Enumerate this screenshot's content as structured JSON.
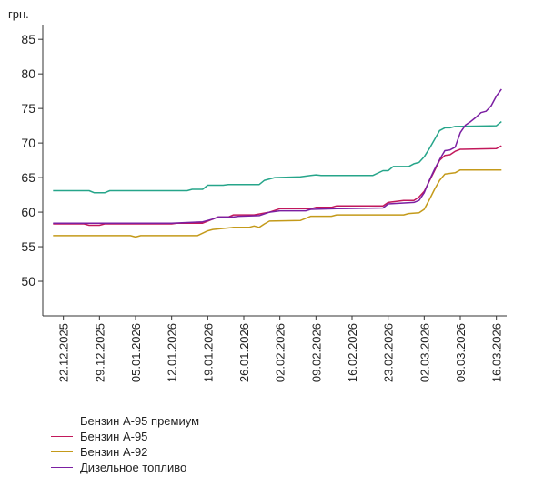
{
  "chart_data": {
    "type": "line",
    "ylabel": "грн.",
    "ylim": [
      45,
      87
    ],
    "yticks": [
      50,
      55,
      60,
      65,
      70,
      75,
      80,
      85
    ],
    "xlim": [
      "2025-12-18",
      "2026-03-18"
    ],
    "xticks": [
      {
        "date": "2025-12-22",
        "label": "22.12.2025"
      },
      {
        "date": "2025-12-29",
        "label": "29.12.2025"
      },
      {
        "date": "2026-01-05",
        "label": "05.01.2026"
      },
      {
        "date": "2026-01-12",
        "label": "12.01.2026"
      },
      {
        "date": "2026-01-19",
        "label": "19.01.2026"
      },
      {
        "date": "2026-01-26",
        "label": "26.01.2026"
      },
      {
        "date": "2026-02-02",
        "label": "02.02.2026"
      },
      {
        "date": "2026-02-09",
        "label": "09.02.2026"
      },
      {
        "date": "2026-02-16",
        "label": "16.02.2026"
      },
      {
        "date": "2026-02-23",
        "label": "23.02.2026"
      },
      {
        "date": "2026-03-02",
        "label": "02.03.2026"
      },
      {
        "date": "2026-03-09",
        "label": "09.03.2026"
      },
      {
        "date": "2026-03-16",
        "label": "16.03.2026"
      }
    ],
    "grid": false,
    "legend_position": "bottom-left",
    "series": [
      {
        "name": "Бензин А-95 премиум",
        "color": "#26a58a",
        "points": [
          [
            "2025-12-20",
            63.1
          ],
          [
            "2025-12-27",
            63.1
          ],
          [
            "2025-12-28",
            62.8
          ],
          [
            "2025-12-30",
            62.8
          ],
          [
            "2025-12-31",
            63.1
          ],
          [
            "2026-01-15",
            63.1
          ],
          [
            "2026-01-16",
            63.3
          ],
          [
            "2026-01-18",
            63.3
          ],
          [
            "2026-01-19",
            63.9
          ],
          [
            "2026-01-22",
            63.9
          ],
          [
            "2026-01-23",
            64.0
          ],
          [
            "2026-01-29",
            64.0
          ],
          [
            "2026-01-30",
            64.6
          ],
          [
            "2026-02-01",
            65.0
          ],
          [
            "2026-02-06",
            65.1
          ],
          [
            "2026-02-08",
            65.3
          ],
          [
            "2026-02-09",
            65.4
          ],
          [
            "2026-02-10",
            65.3
          ],
          [
            "2026-02-20",
            65.3
          ],
          [
            "2026-02-22",
            66.0
          ],
          [
            "2026-02-23",
            66.0
          ],
          [
            "2026-02-24",
            66.6
          ],
          [
            "2026-02-27",
            66.6
          ],
          [
            "2026-02-28",
            67.0
          ],
          [
            "2026-03-01",
            67.2
          ],
          [
            "2026-03-02",
            68.0
          ],
          [
            "2026-03-03",
            69.2
          ],
          [
            "2026-03-04",
            70.5
          ],
          [
            "2026-03-05",
            71.8
          ],
          [
            "2026-03-06",
            72.2
          ],
          [
            "2026-03-07",
            72.2
          ],
          [
            "2026-03-08",
            72.4
          ],
          [
            "2026-03-16",
            72.5
          ],
          [
            "2026-03-17",
            73.1
          ]
        ]
      },
      {
        "name": "Бензин А-95",
        "color": "#c2185b",
        "points": [
          [
            "2025-12-20",
            58.3
          ],
          [
            "2025-12-26",
            58.3
          ],
          [
            "2025-12-27",
            58.1
          ],
          [
            "2025-12-29",
            58.1
          ],
          [
            "2025-12-30",
            58.3
          ],
          [
            "2026-01-12",
            58.3
          ],
          [
            "2026-01-13",
            58.4
          ],
          [
            "2026-01-18",
            58.4
          ],
          [
            "2026-01-20",
            59.0
          ],
          [
            "2026-01-21",
            59.3
          ],
          [
            "2026-01-23",
            59.3
          ],
          [
            "2026-01-24",
            59.6
          ],
          [
            "2026-01-28",
            59.6
          ],
          [
            "2026-01-31",
            60.0
          ],
          [
            "2026-02-02",
            60.5
          ],
          [
            "2026-02-08",
            60.5
          ],
          [
            "2026-02-09",
            60.7
          ],
          [
            "2026-02-12",
            60.7
          ],
          [
            "2026-02-13",
            60.9
          ],
          [
            "2026-02-22",
            60.9
          ],
          [
            "2026-02-23",
            61.4
          ],
          [
            "2026-02-26",
            61.7
          ],
          [
            "2026-02-28",
            61.7
          ],
          [
            "2026-03-01",
            62.2
          ],
          [
            "2026-03-02",
            63.0
          ],
          [
            "2026-03-03",
            64.5
          ],
          [
            "2026-03-04",
            66.0
          ],
          [
            "2026-03-05",
            67.5
          ],
          [
            "2026-03-06",
            68.2
          ],
          [
            "2026-03-07",
            68.3
          ],
          [
            "2026-03-08",
            68.8
          ],
          [
            "2026-03-09",
            69.1
          ],
          [
            "2026-03-16",
            69.2
          ],
          [
            "2026-03-17",
            69.6
          ]
        ]
      },
      {
        "name": "Бензин А-92",
        "color": "#c49a1a",
        "points": [
          [
            "2025-12-20",
            56.6
          ],
          [
            "2026-01-04",
            56.6
          ],
          [
            "2026-01-05",
            56.4
          ],
          [
            "2026-01-06",
            56.6
          ],
          [
            "2026-01-17",
            56.6
          ],
          [
            "2026-01-19",
            57.3
          ],
          [
            "2026-01-20",
            57.5
          ],
          [
            "2026-01-24",
            57.8
          ],
          [
            "2026-01-27",
            57.8
          ],
          [
            "2026-01-28",
            58.0
          ],
          [
            "2026-01-29",
            57.8
          ],
          [
            "2026-01-30",
            58.3
          ],
          [
            "2026-01-31",
            58.7
          ],
          [
            "2026-02-06",
            58.8
          ],
          [
            "2026-02-07",
            59.1
          ],
          [
            "2026-02-08",
            59.4
          ],
          [
            "2026-02-12",
            59.4
          ],
          [
            "2026-02-13",
            59.6
          ],
          [
            "2026-02-26",
            59.6
          ],
          [
            "2026-02-27",
            59.8
          ],
          [
            "2026-03-01",
            59.9
          ],
          [
            "2026-03-02",
            60.4
          ],
          [
            "2026-03-03",
            61.8
          ],
          [
            "2026-03-04",
            63.3
          ],
          [
            "2026-03-05",
            64.6
          ],
          [
            "2026-03-06",
            65.5
          ],
          [
            "2026-03-08",
            65.7
          ],
          [
            "2026-03-09",
            66.1
          ],
          [
            "2026-03-17",
            66.1
          ]
        ]
      },
      {
        "name": "Дизельное топливо",
        "color": "#7b1fa2",
        "points": [
          [
            "2025-12-20",
            58.4
          ],
          [
            "2026-01-12",
            58.4
          ],
          [
            "2026-01-18",
            58.6
          ],
          [
            "2026-01-20",
            59.0
          ],
          [
            "2026-01-21",
            59.3
          ],
          [
            "2026-01-24",
            59.3
          ],
          [
            "2026-01-25",
            59.4
          ],
          [
            "2026-01-29",
            59.5
          ],
          [
            "2026-01-31",
            60.0
          ],
          [
            "2026-02-02",
            60.2
          ],
          [
            "2026-02-07",
            60.2
          ],
          [
            "2026-02-08",
            60.4
          ],
          [
            "2026-02-13",
            60.5
          ],
          [
            "2026-02-22",
            60.6
          ],
          [
            "2026-02-23",
            61.2
          ],
          [
            "2026-02-28",
            61.4
          ],
          [
            "2026-03-01",
            61.7
          ],
          [
            "2026-03-02",
            62.8
          ],
          [
            "2026-03-03",
            64.6
          ],
          [
            "2026-03-04",
            66.2
          ],
          [
            "2026-03-05",
            67.6
          ],
          [
            "2026-03-06",
            68.9
          ],
          [
            "2026-03-07",
            69.0
          ],
          [
            "2026-03-08",
            69.4
          ],
          [
            "2026-03-09",
            71.5
          ],
          [
            "2026-03-10",
            72.6
          ],
          [
            "2026-03-11",
            73.1
          ],
          [
            "2026-03-12",
            73.7
          ],
          [
            "2026-03-13",
            74.4
          ],
          [
            "2026-03-14",
            74.6
          ],
          [
            "2026-03-15",
            75.4
          ],
          [
            "2026-03-16",
            76.8
          ],
          [
            "2026-03-17",
            77.8
          ]
        ]
      }
    ]
  }
}
